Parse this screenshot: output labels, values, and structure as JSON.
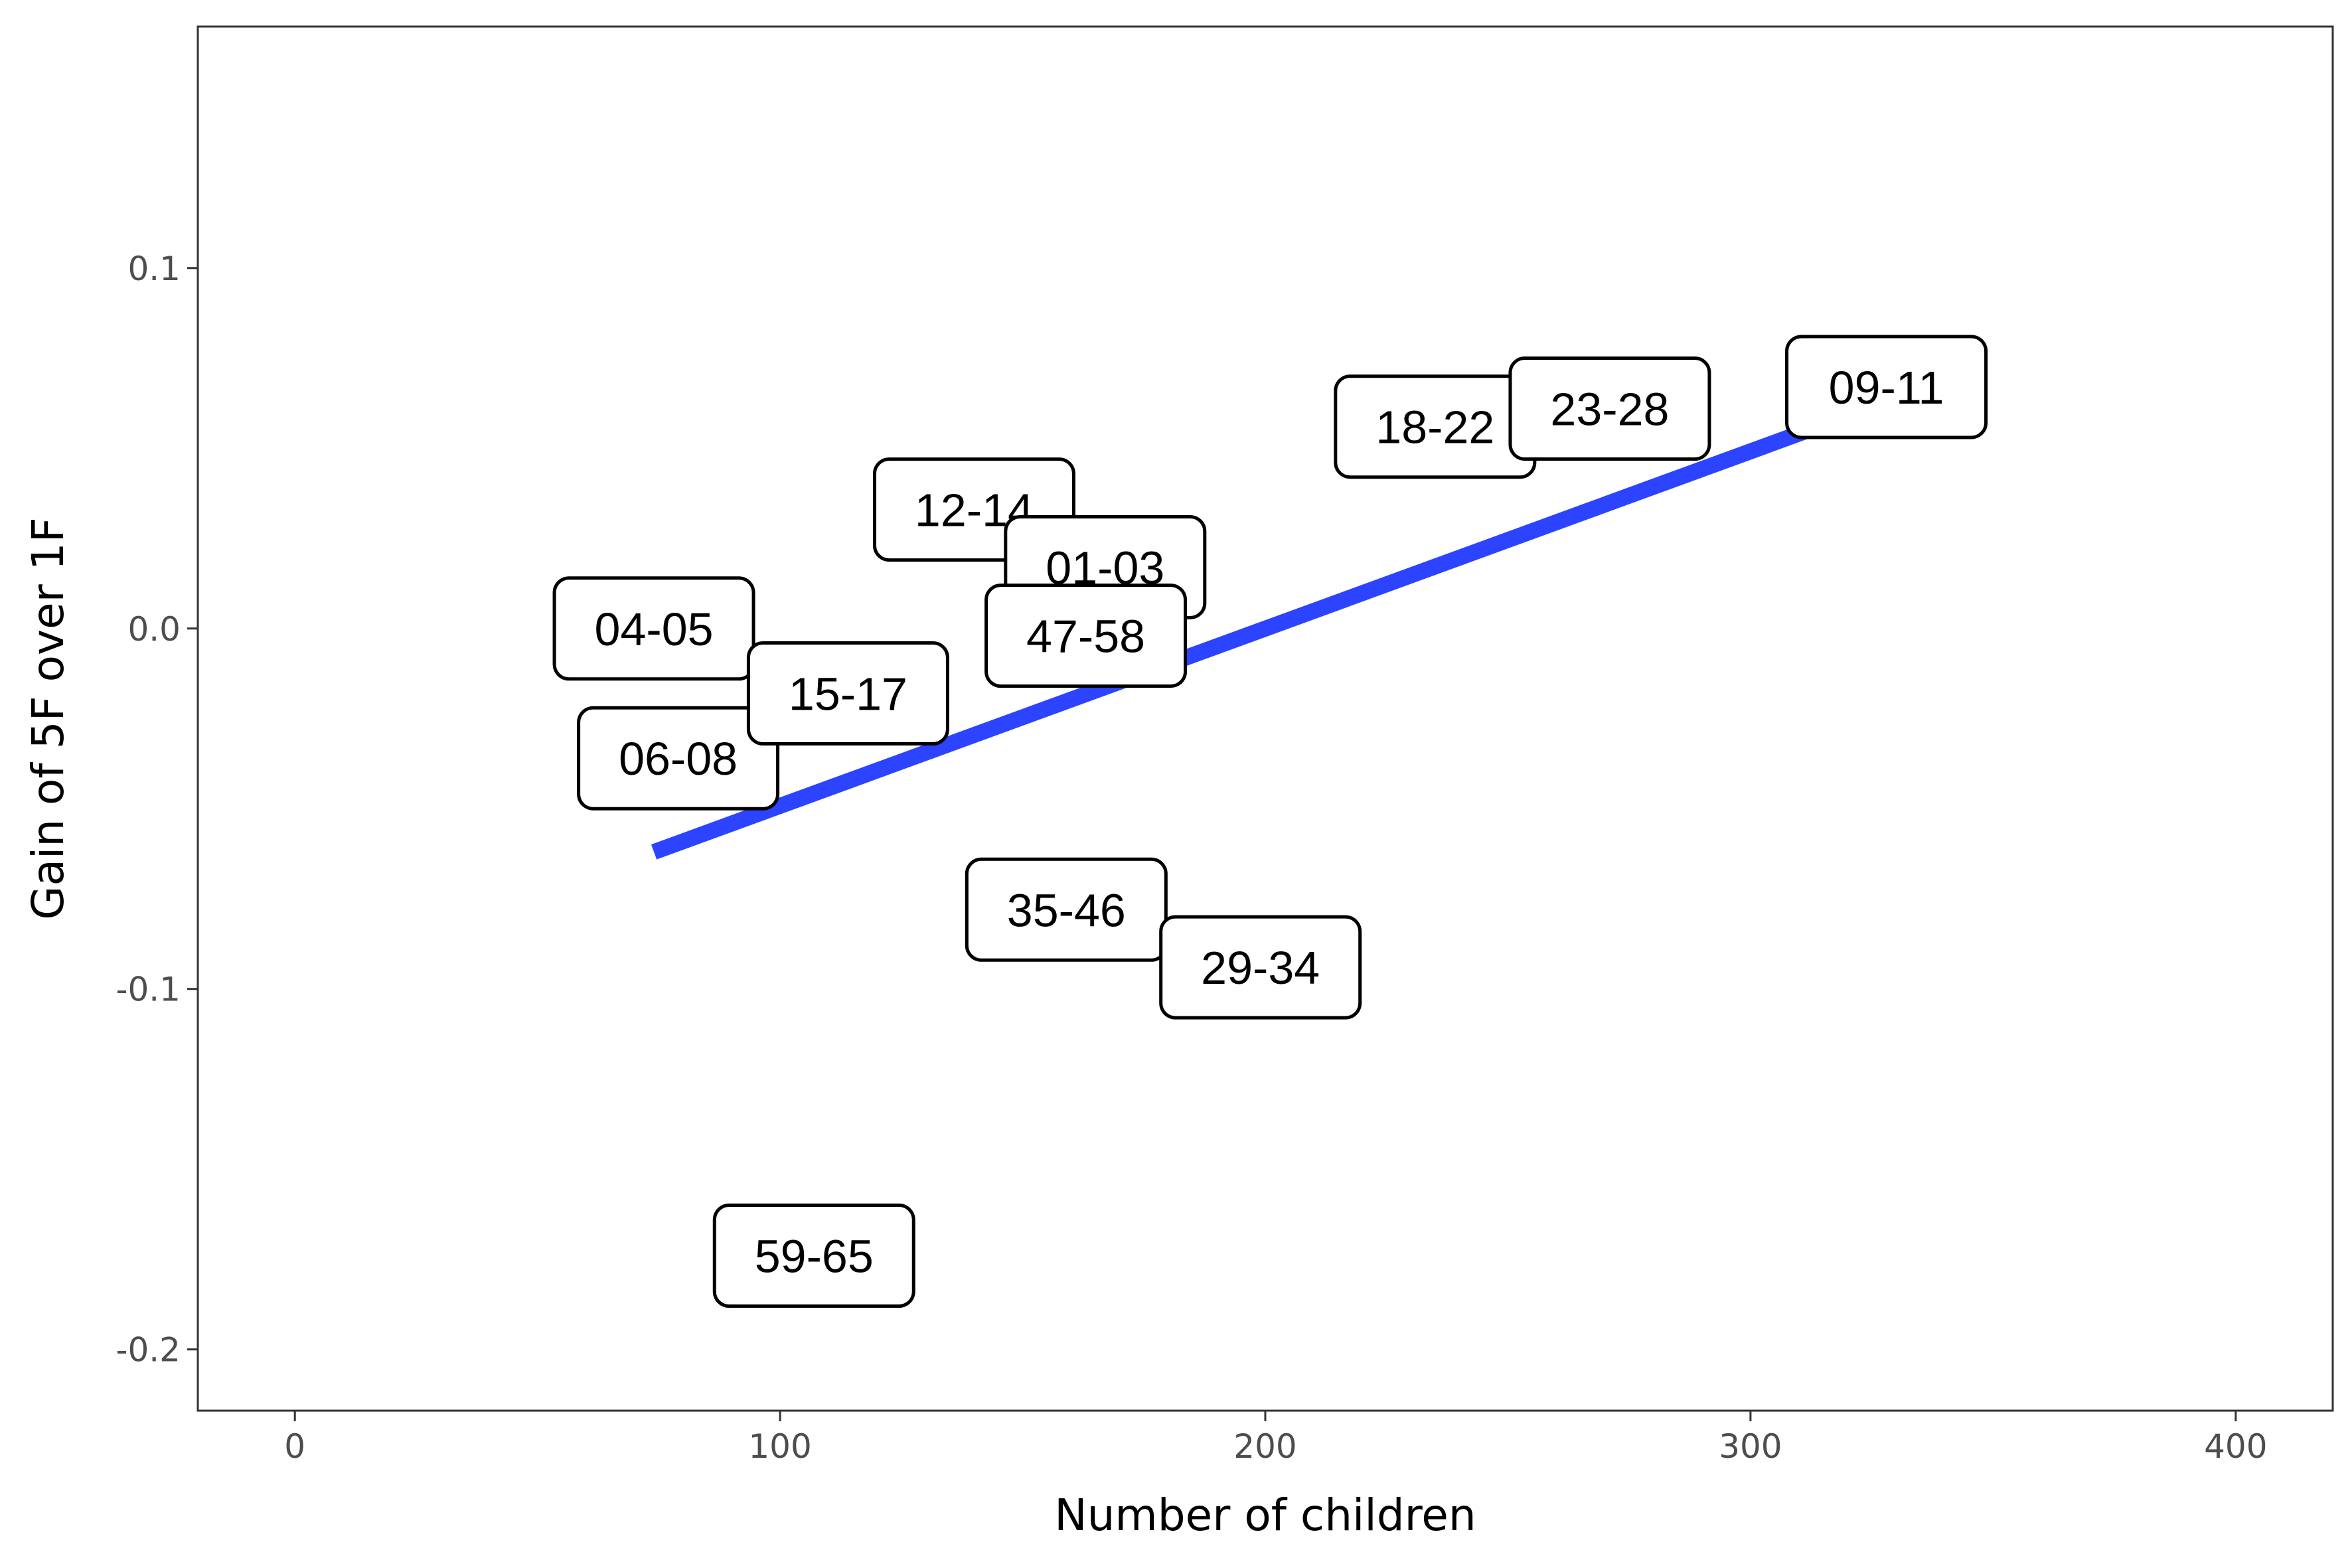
{
  "chart_data": {
    "type": "scatter",
    "title": "",
    "xlabel": "Number of children",
    "ylabel": "Gain of 5F over 1F",
    "xlim": [
      -20,
      420
    ],
    "ylim": [
      -0.217,
      0.167
    ],
    "xticks": [
      0,
      100,
      200,
      300,
      400
    ],
    "xtick_labels": [
      "0",
      "100",
      "200",
      "300",
      "400"
    ],
    "yticks": [
      0.1,
      0.0,
      -0.1,
      -0.2
    ],
    "ytick_labels": [
      "0.1",
      "0.0",
      "-0.1",
      "-0.2"
    ],
    "grid": false,
    "points": [
      {
        "label": "04-05",
        "x": 74,
        "y": 0.0
      },
      {
        "label": "06-08",
        "x": 79,
        "y": -0.036
      },
      {
        "label": "15-17",
        "x": 114,
        "y": -0.018
      },
      {
        "label": "12-14",
        "x": 140,
        "y": 0.033
      },
      {
        "label": "01-03",
        "x": 167,
        "y": 0.017
      },
      {
        "label": "47-58",
        "x": 163,
        "y": -0.002
      },
      {
        "label": "35-46",
        "x": 159,
        "y": -0.078
      },
      {
        "label": "29-34",
        "x": 199,
        "y": -0.094
      },
      {
        "label": "18-22",
        "x": 235,
        "y": 0.056
      },
      {
        "label": "23-28",
        "x": 271,
        "y": 0.061
      },
      {
        "label": "09-11",
        "x": 328,
        "y": 0.067
      },
      {
        "label": "59-65",
        "x": 107,
        "y": -0.174
      }
    ],
    "fit_line": {
      "x": [
        74,
        318
      ],
      "y": [
        -0.062,
        0.058
      ]
    },
    "colors": {
      "fit_line": "#2c44ff",
      "panel_border": "#333333",
      "label_border": "#000000"
    }
  }
}
